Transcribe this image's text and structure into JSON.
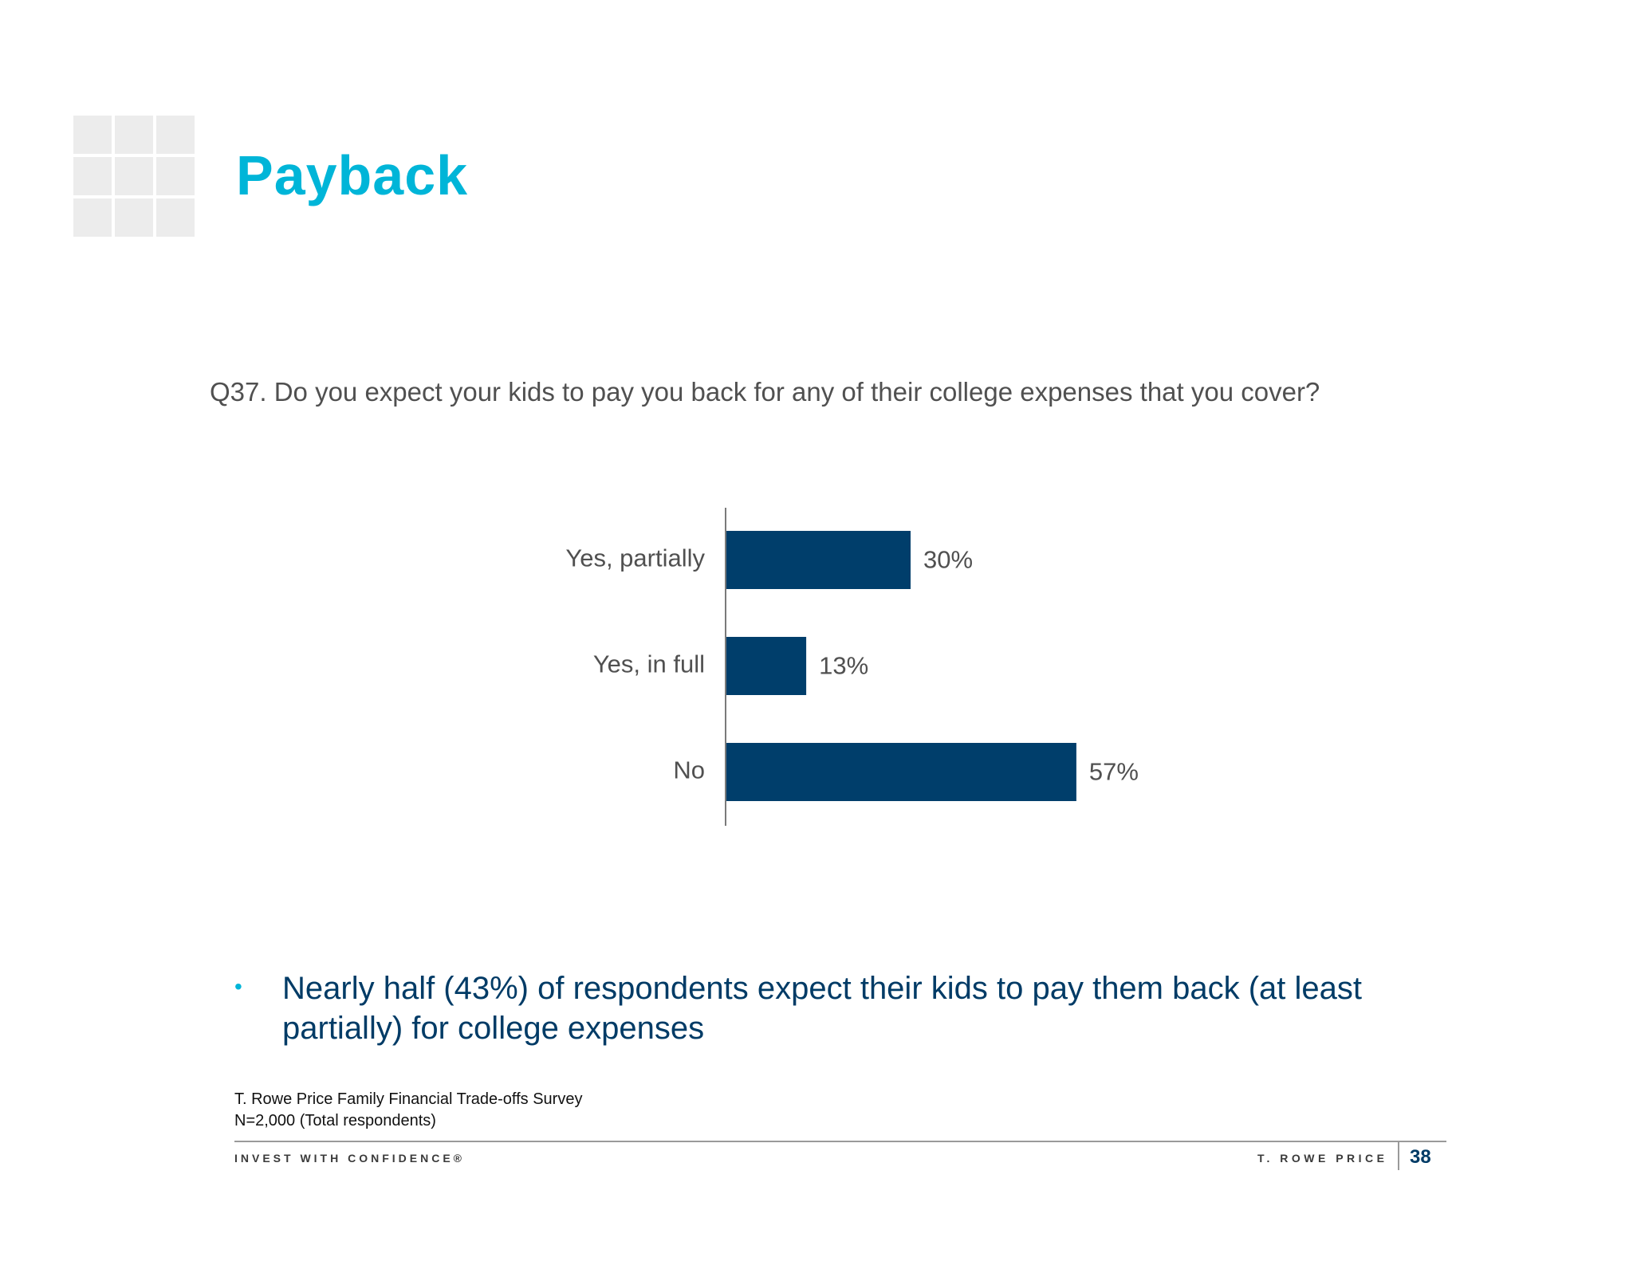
{
  "slide": {
    "title": "Payback",
    "question": "Q37. Do you expect your kids to pay you back for any of their college expenses that you cover?",
    "bullet_symbol": "•",
    "insight": "Nearly half (43%) of respondents expect their kids to pay them back (at least partially) for college expenses",
    "source_line1": "T. Rowe Price Family Financial Trade-offs Survey",
    "source_line2": "N=2,000 (Total respondents)"
  },
  "footer": {
    "tagline": "INVEST WITH CONFIDENCE®",
    "brand": "T. ROWE PRICE",
    "page_number": "38"
  },
  "colors": {
    "title": "#00b5d8",
    "bar": "#003e6b",
    "insight_text": "#003b66",
    "label_text": "#505050"
  },
  "chart_data": {
    "type": "bar",
    "orientation": "horizontal",
    "categories": [
      "Yes, partially",
      "Yes, in full",
      "No"
    ],
    "values": [
      30,
      13,
      57
    ],
    "value_labels": [
      "30%",
      "13%",
      "57%"
    ],
    "unit": "%",
    "xlim": [
      0,
      100
    ],
    "grid": false,
    "legend": "none"
  }
}
